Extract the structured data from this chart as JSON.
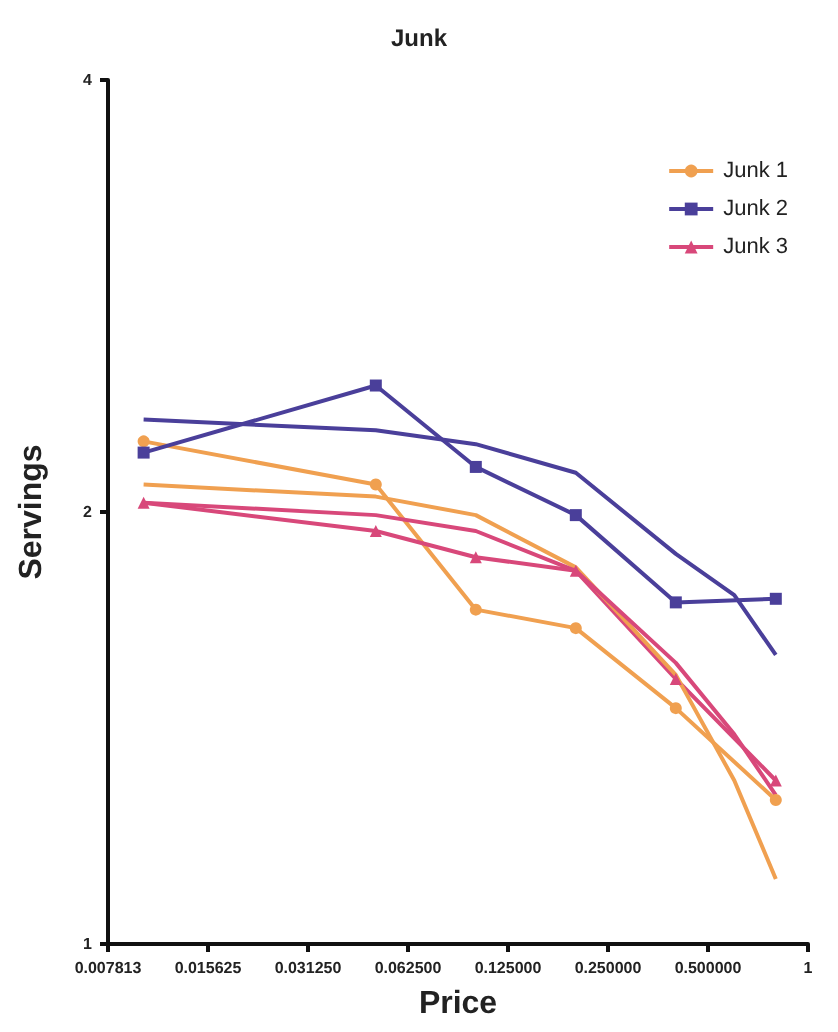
{
  "chart_data": {
    "type": "line",
    "title": "Junk",
    "xlabel": "Price",
    "ylabel": "Servings",
    "log": "xy",
    "grid": false,
    "legend": "top right",
    "xlim": [
      0.0078125,
      1
    ],
    "xticks": [
      {
        "value": 0.0078125,
        "label": "0.007813"
      },
      {
        "value": 0.015625,
        "label": "0.015625"
      },
      {
        "value": 0.03125,
        "label": "0.031250"
      },
      {
        "value": 0.0625,
        "label": "0.062500"
      },
      {
        "value": 0.125,
        "label": "0.125000"
      },
      {
        "value": 0.25,
        "label": "0.250000"
      },
      {
        "value": 0.5,
        "label": "0.500000"
      },
      1
    ],
    "ylim": [
      1,
      4
    ],
    "yticks": [
      1,
      2,
      4
    ],
    "series": [
      {
        "name": "Junk 1",
        "color": "#f0a050",
        "marker": "circle",
        "x": [
          0.01,
          0.05,
          0.1,
          0.2,
          0.4,
          0.8
        ],
        "values": [
          2.24,
          2.09,
          1.71,
          1.66,
          1.46,
          1.26
        ]
      },
      {
        "name": "Junk 2",
        "color": "#4a3f9a",
        "marker": "square",
        "x": [
          0.01,
          0.05,
          0.1,
          0.2,
          0.4,
          0.8
        ],
        "values": [
          2.2,
          2.45,
          2.15,
          1.99,
          1.73,
          1.74
        ]
      },
      {
        "name": "Junk 3",
        "color": "#d8487a",
        "marker": "triangle",
        "x": [
          0.01,
          0.05,
          0.1,
          0.2,
          0.4,
          0.8
        ],
        "values": [
          2.03,
          1.94,
          1.86,
          1.82,
          1.53,
          1.3
        ]
      },
      {
        "color": "#f0a050",
        "marker": "none",
        "x": [
          0.01,
          0.05,
          0.1,
          0.2,
          0.4,
          0.6,
          0.8
        ],
        "values": [
          2.09,
          2.05,
          1.99,
          1.83,
          1.54,
          1.3,
          1.11
        ]
      },
      {
        "color": "#4a3f9a",
        "marker": "none",
        "x": [
          0.01,
          0.05,
          0.1,
          0.2,
          0.4,
          0.6,
          0.8
        ],
        "values": [
          2.32,
          2.28,
          2.23,
          2.13,
          1.87,
          1.75,
          1.59
        ]
      },
      {
        "color": "#d8487a",
        "marker": "none",
        "x": [
          0.01,
          0.05,
          0.1,
          0.2,
          0.4,
          0.6,
          0.8
        ],
        "values": [
          2.03,
          1.99,
          1.94,
          1.82,
          1.57,
          1.4,
          1.27
        ]
      }
    ]
  }
}
